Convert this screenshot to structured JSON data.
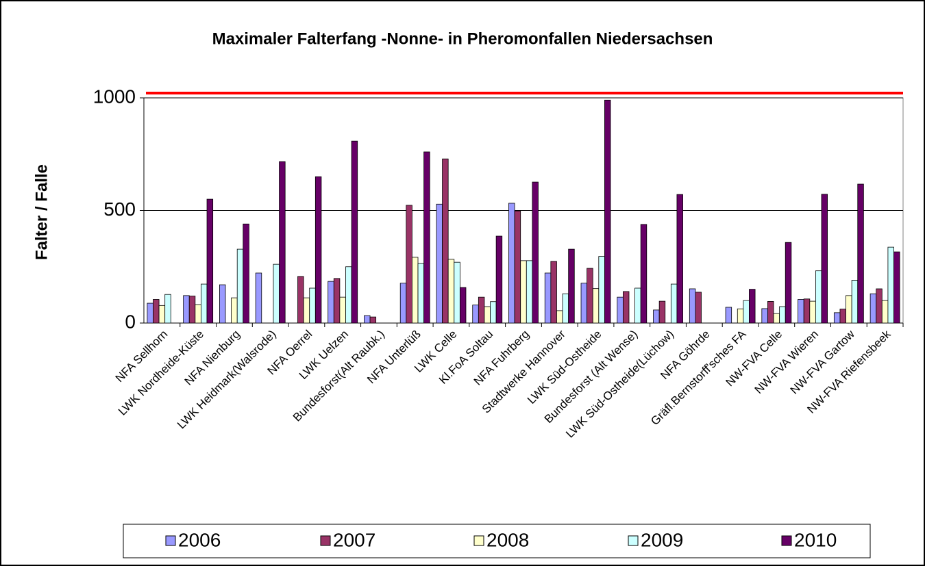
{
  "chart_data": {
    "type": "bar",
    "title": "Maximaler Falterfang -Nonne- in Pheromonfallen Niedersachsen",
    "y_label": "Falter / Falle",
    "categories": [
      "NFA Sellhorn",
      "LWK Nordheide-Küste",
      "NFA Nienburg",
      "LWK Heidmark(Walsrode)",
      "NFA Oerrel",
      "LWK Uelzen",
      "Bundesforst(Alt Raubk.)",
      "NFA Unterlüß",
      "LWK Celle",
      "Kl.FoA Soltau",
      "NFA Fuhrberg",
      "Stadtwerke Hannover",
      "LWK Süd-Ostheide",
      "Bundesforst (Alt Wense)",
      "LWK Süd-Ostheide(Lüchow)",
      "NFA Göhrde",
      "Gräfl.Bernstorff'sches FA",
      "NW-FVA  Celle",
      "NW-FVA Wieren",
      "NW-FVA Gartow",
      "NW-FVA Riefensbeek"
    ],
    "series": [
      {
        "name": "2006",
        "color": "#9999ff",
        "values": [
          88,
          122,
          170,
          222,
          null,
          185,
          33,
          177,
          528,
          80,
          532,
          222,
          177,
          115,
          58,
          152,
          70,
          64,
          105,
          46,
          130
        ]
      },
      {
        "name": "2007",
        "color": "#993366",
        "values": [
          105,
          120,
          null,
          null,
          207,
          198,
          27,
          523,
          729,
          115,
          498,
          274,
          243,
          140,
          97,
          137,
          null,
          96,
          107,
          62,
          152
        ]
      },
      {
        "name": "2008",
        "color": "#ffffcc",
        "values": [
          78,
          82,
          112,
          null,
          112,
          115,
          null,
          292,
          283,
          73,
          277,
          55,
          153,
          null,
          null,
          null,
          63,
          42,
          97,
          122,
          100
        ]
      },
      {
        "name": "2009",
        "color": "#ccffff",
        "values": [
          127,
          173,
          328,
          261,
          155,
          250,
          null,
          265,
          270,
          95,
          277,
          130,
          296,
          155,
          173,
          null,
          100,
          73,
          232,
          190,
          337
        ]
      },
      {
        "name": "2010",
        "color": "#660066",
        "values": [
          null,
          550,
          440,
          717,
          650,
          808,
          null,
          760,
          158,
          386,
          626,
          328,
          990,
          438,
          571,
          null,
          150,
          358,
          572,
          617,
          316
        ]
      }
    ],
    "ylim": [
      0,
      1000
    ],
    "yticks": [
      0,
      500,
      1000
    ],
    "grid": true,
    "legend": "bottom"
  }
}
